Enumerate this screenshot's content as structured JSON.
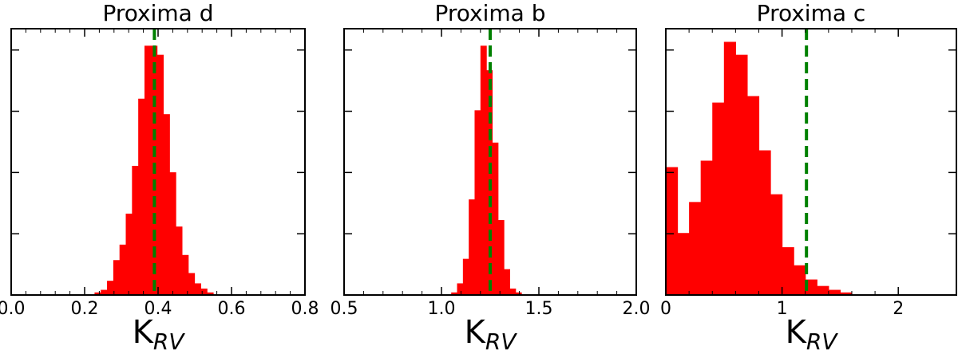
{
  "chart_data": [
    {
      "type": "bar",
      "title": "Proxima d",
      "xlabel_main": "K",
      "xlabel_sub": "RV",
      "xlim": [
        0.0,
        0.8
      ],
      "xticks": [
        0.0,
        0.2,
        0.4,
        0.6,
        0.8
      ],
      "xtick_labels": [
        "0.0",
        "0.2",
        "0.4",
        "0.6",
        "0.8"
      ],
      "y_normalized": true,
      "bar_color": "#ff0000",
      "bins": [
        {
          "x0": 0.227,
          "x1": 0.244,
          "y": 0.01
        },
        {
          "x0": 0.244,
          "x1": 0.261,
          "y": 0.02
        },
        {
          "x0": 0.261,
          "x1": 0.278,
          "y": 0.055
        },
        {
          "x0": 0.278,
          "x1": 0.295,
          "y": 0.135
        },
        {
          "x0": 0.295,
          "x1": 0.312,
          "y": 0.195
        },
        {
          "x0": 0.312,
          "x1": 0.329,
          "y": 0.315
        },
        {
          "x0": 0.329,
          "x1": 0.346,
          "y": 0.5
        },
        {
          "x0": 0.346,
          "x1": 0.363,
          "y": 0.76
        },
        {
          "x0": 0.363,
          "x1": 0.38,
          "y": 0.965
        },
        {
          "x0": 0.38,
          "x1": 0.397,
          "y": 0.965
        },
        {
          "x0": 0.397,
          "x1": 0.414,
          "y": 0.93
        },
        {
          "x0": 0.414,
          "x1": 0.431,
          "y": 0.7
        },
        {
          "x0": 0.431,
          "x1": 0.448,
          "y": 0.475
        },
        {
          "x0": 0.448,
          "x1": 0.465,
          "y": 0.265
        },
        {
          "x0": 0.465,
          "x1": 0.482,
          "y": 0.155
        },
        {
          "x0": 0.482,
          "x1": 0.499,
          "y": 0.085
        },
        {
          "x0": 0.499,
          "x1": 0.516,
          "y": 0.045
        },
        {
          "x0": 0.516,
          "x1": 0.533,
          "y": 0.025
        },
        {
          "x0": 0.533,
          "x1": 0.55,
          "y": 0.01
        }
      ],
      "vline_x": 0.39,
      "vline_color": "#008000"
    },
    {
      "type": "bar",
      "title": "Proxima b",
      "xlabel_main": "K",
      "xlabel_sub": "RV",
      "xlim": [
        0.5,
        2.0
      ],
      "xticks": [
        0.5,
        1.0,
        1.5,
        2.0
      ],
      "xtick_labels": [
        "0.5",
        "1.0",
        "1.5",
        "2.0"
      ],
      "y_normalized": true,
      "bar_color": "#ff0000",
      "bins": [
        {
          "x0": 1.05,
          "x1": 1.08,
          "y": 0.01
        },
        {
          "x0": 1.08,
          "x1": 1.11,
          "y": 0.045
        },
        {
          "x0": 1.11,
          "x1": 1.14,
          "y": 0.14
        },
        {
          "x0": 1.14,
          "x1": 1.17,
          "y": 0.37
        },
        {
          "x0": 1.17,
          "x1": 1.2,
          "y": 0.715
        },
        {
          "x0": 1.2,
          "x1": 1.23,
          "y": 0.965
        },
        {
          "x0": 1.23,
          "x1": 1.26,
          "y": 0.87
        },
        {
          "x0": 1.26,
          "x1": 1.29,
          "y": 0.59
        },
        {
          "x0": 1.29,
          "x1": 1.32,
          "y": 0.29
        },
        {
          "x0": 1.32,
          "x1": 1.35,
          "y": 0.1
        },
        {
          "x0": 1.35,
          "x1": 1.38,
          "y": 0.025
        },
        {
          "x0": 1.38,
          "x1": 1.41,
          "y": 0.01
        }
      ],
      "vline_x": 1.25,
      "vline_color": "#008000"
    },
    {
      "type": "bar",
      "title": "Proxima c",
      "xlabel_main": "K",
      "xlabel_sub": "RV",
      "xlim": [
        0.0,
        2.5
      ],
      "xticks": [
        0,
        1,
        2
      ],
      "xtick_labels": [
        "0",
        "1",
        "2"
      ],
      "y_normalized": true,
      "bar_color": "#ff0000",
      "bins": [
        {
          "x0": 0.0,
          "x1": 0.1,
          "y": 0.495
        },
        {
          "x0": 0.1,
          "x1": 0.2,
          "y": 0.24
        },
        {
          "x0": 0.2,
          "x1": 0.3,
          "y": 0.36
        },
        {
          "x0": 0.3,
          "x1": 0.4,
          "y": 0.52
        },
        {
          "x0": 0.4,
          "x1": 0.5,
          "y": 0.745
        },
        {
          "x0": 0.5,
          "x1": 0.6,
          "y": 0.98
        },
        {
          "x0": 0.6,
          "x1": 0.7,
          "y": 0.93
        },
        {
          "x0": 0.7,
          "x1": 0.8,
          "y": 0.77
        },
        {
          "x0": 0.8,
          "x1": 0.9,
          "y": 0.56
        },
        {
          "x0": 0.9,
          "x1": 1.0,
          "y": 0.39
        },
        {
          "x0": 1.0,
          "x1": 1.1,
          "y": 0.185
        },
        {
          "x0": 1.1,
          "x1": 1.2,
          "y": 0.115
        },
        {
          "x0": 1.2,
          "x1": 1.3,
          "y": 0.06
        },
        {
          "x0": 1.3,
          "x1": 1.4,
          "y": 0.035
        },
        {
          "x0": 1.4,
          "x1": 1.5,
          "y": 0.02
        },
        {
          "x0": 1.5,
          "x1": 1.6,
          "y": 0.01
        }
      ],
      "vline_x": 1.21,
      "vline_color": "#008000"
    }
  ]
}
